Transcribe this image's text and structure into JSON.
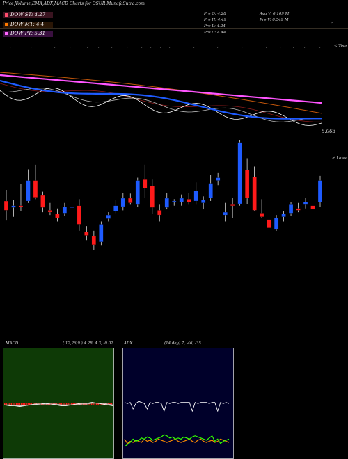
{
  "header": {
    "title": "Price,Volume,EMA,ADX,MACD Charts for OSUR MunafaSutra.com"
  },
  "legend": {
    "items": [
      {
        "label": "DOW ST: 4.27",
        "color": "#ff4d6d"
      },
      {
        "label": "DOW MT: 4.4",
        "color": "#ff7a00"
      },
      {
        "label": "DOW PT: 5.31",
        "color": "#ff66ff"
      }
    ]
  },
  "stats": {
    "open": "Pre  O: 4.28",
    "high": "Pre  H: 4.49",
    "low": "Pre  L: 4.24",
    "close": "Pre  C: 4.44",
    "avg_vol": "Avg V: 0.109 M",
    "pre_vol": "Pre  V: 0.549 M"
  },
  "labels": {
    "top_right": "5",
    "tops": "< Tops",
    "lows": "< Lows",
    "price_level": "5.063",
    "macd_label": "MACD:",
    "macd_values": "( 12,26,9 ) 4.28,  4.3,  -0.02",
    "adx_label": "ADX",
    "adx_values": "(14  day) 7,  -46,  -35"
  },
  "colors": {
    "up": "#1e5bff",
    "down": "#ff1a1a",
    "ema_blue": "#1e5bff",
    "ema_magenta": "#ff55ff",
    "ema_orange": "#c2560b",
    "macd_bg": "#0e3a06",
    "adx_bg": "#00002a",
    "grid": "#d2b48c"
  },
  "chart_data": [
    {
      "type": "candlestick",
      "title": "OSUR price (candles)",
      "candles": [
        {
          "o": 4.62,
          "h": 4.74,
          "l": 4.41,
          "c": 4.52
        },
        {
          "o": 4.55,
          "h": 4.63,
          "l": 4.45,
          "c": 4.57
        },
        {
          "o": 4.57,
          "h": 4.8,
          "l": 4.51,
          "c": 4.56
        },
        {
          "o": 4.62,
          "h": 4.96,
          "l": 4.6,
          "c": 4.84
        },
        {
          "o": 4.84,
          "h": 5.01,
          "l": 4.64,
          "c": 4.66
        },
        {
          "o": 4.68,
          "h": 4.72,
          "l": 4.5,
          "c": 4.55
        },
        {
          "o": 4.52,
          "h": 4.6,
          "l": 4.47,
          "c": 4.5
        },
        {
          "o": 4.48,
          "h": 4.54,
          "l": 4.4,
          "c": 4.44
        },
        {
          "o": 4.49,
          "h": 4.6,
          "l": 4.46,
          "c": 4.56
        },
        {
          "o": 4.55,
          "h": 4.7,
          "l": 4.51,
          "c": 4.56
        },
        {
          "o": 4.57,
          "h": 4.64,
          "l": 4.3,
          "c": 4.37
        },
        {
          "o": 4.29,
          "h": 4.35,
          "l": 4.2,
          "c": 4.25
        },
        {
          "o": 4.24,
          "h": 4.3,
          "l": 4.09,
          "c": 4.15
        },
        {
          "o": 4.18,
          "h": 4.4,
          "l": 4.14,
          "c": 4.37
        },
        {
          "o": 4.43,
          "h": 4.5,
          "l": 4.4,
          "c": 4.47
        },
        {
          "o": 4.51,
          "h": 4.63,
          "l": 4.49,
          "c": 4.57
        },
        {
          "o": 4.56,
          "h": 4.71,
          "l": 4.52,
          "c": 4.65
        },
        {
          "o": 4.65,
          "h": 4.7,
          "l": 4.58,
          "c": 4.6
        },
        {
          "o": 4.58,
          "h": 4.87,
          "l": 4.56,
          "c": 4.84
        },
        {
          "o": 4.85,
          "h": 5.01,
          "l": 4.65,
          "c": 4.76
        },
        {
          "o": 4.78,
          "h": 4.85,
          "l": 4.48,
          "c": 4.55
        },
        {
          "o": 4.52,
          "h": 4.58,
          "l": 4.4,
          "c": 4.47
        },
        {
          "o": 4.55,
          "h": 4.71,
          "l": 4.53,
          "c": 4.65
        },
        {
          "o": 4.61,
          "h": 4.64,
          "l": 4.57,
          "c": 4.62
        },
        {
          "o": 4.61,
          "h": 4.69,
          "l": 4.57,
          "c": 4.65
        },
        {
          "o": 4.64,
          "h": 4.71,
          "l": 4.58,
          "c": 4.61
        },
        {
          "o": 4.62,
          "h": 4.82,
          "l": 4.58,
          "c": 4.73
        },
        {
          "o": 4.6,
          "h": 4.67,
          "l": 4.53,
          "c": 4.63
        },
        {
          "o": 4.65,
          "h": 4.9,
          "l": 4.62,
          "c": 4.81
        },
        {
          "o": 4.84,
          "h": 4.92,
          "l": 4.79,
          "c": 4.87
        },
        {
          "o": 4.47,
          "h": 4.6,
          "l": 4.4,
          "c": 4.5
        },
        {
          "o": 4.58,
          "h": 4.65,
          "l": 4.44,
          "c": 4.57
        },
        {
          "o": 4.59,
          "h": 5.27,
          "l": 4.57,
          "c": 5.25
        },
        {
          "o": 4.95,
          "h": 5.08,
          "l": 4.59,
          "c": 4.65
        },
        {
          "o": 4.88,
          "h": 4.99,
          "l": 4.51,
          "c": 4.52
        },
        {
          "o": 4.49,
          "h": 4.64,
          "l": 4.44,
          "c": 4.45
        },
        {
          "o": 4.42,
          "h": 4.52,
          "l": 4.29,
          "c": 4.33
        },
        {
          "o": 4.32,
          "h": 4.47,
          "l": 4.3,
          "c": 4.44
        },
        {
          "o": 4.45,
          "h": 4.51,
          "l": 4.4,
          "c": 4.48
        },
        {
          "o": 4.49,
          "h": 4.61,
          "l": 4.46,
          "c": 4.58
        },
        {
          "o": 4.54,
          "h": 4.6,
          "l": 4.5,
          "c": 4.52
        },
        {
          "o": 4.58,
          "h": 4.65,
          "l": 4.54,
          "c": 4.61
        },
        {
          "o": 4.57,
          "h": 4.64,
          "l": 4.48,
          "c": 4.53
        },
        {
          "o": 4.61,
          "h": 4.89,
          "l": 4.56,
          "c": 4.84
        }
      ]
    },
    {
      "type": "line",
      "title": "MACD",
      "series": [
        {
          "name": "MACD",
          "values": [
            -0.01,
            -0.02,
            -0.02,
            -0.03,
            -0.02,
            -0.01,
            0.0,
            0.0,
            0.01,
            0.0,
            -0.01,
            -0.02,
            -0.02,
            -0.01,
            0.0,
            0.01,
            0.01,
            0.02,
            0.01,
            0.0,
            -0.01,
            -0.02
          ]
        },
        {
          "name": "Signal",
          "values": [
            -0.01,
            -0.01,
            -0.02,
            -0.02,
            -0.02,
            -0.01,
            -0.01,
            0.0,
            0.0,
            0.0,
            0.0,
            -0.01,
            -0.01,
            -0.01,
            -0.01,
            0.0,
            0.0,
            0.01,
            0.01,
            0.01,
            0.0,
            -0.01
          ]
        }
      ]
    },
    {
      "type": "line",
      "title": "ADX",
      "series": [
        {
          "name": "ADX",
          "values": [
            46,
            45,
            46,
            40,
            45,
            47,
            46,
            45,
            40,
            46,
            45,
            46,
            46,
            45,
            38,
            46,
            45,
            46,
            46,
            45,
            46,
            46,
            46,
            46,
            38,
            46,
            45,
            46,
            46,
            46,
            45,
            46,
            46,
            38,
            46,
            45,
            46,
            45
          ]
        },
        {
          "name": "+DI",
          "values": [
            12,
            8,
            10,
            9,
            11,
            10,
            9,
            12,
            10,
            11,
            9,
            10,
            12,
            11,
            10,
            9,
            10,
            11,
            12,
            10,
            9,
            10,
            11,
            12,
            10,
            9,
            11,
            12,
            10,
            9,
            10,
            11,
            9,
            10,
            12,
            11,
            10,
            9
          ]
        },
        {
          "name": "-DI",
          "values": [
            5,
            7,
            9,
            12,
            10,
            11,
            13,
            12,
            14,
            13,
            11,
            12,
            13,
            14,
            16,
            15,
            13,
            14,
            12,
            13,
            12,
            14,
            13,
            12,
            14,
            15,
            14,
            13,
            12,
            11,
            13,
            15,
            10,
            12,
            8,
            10,
            11,
            12
          ]
        }
      ]
    }
  ]
}
